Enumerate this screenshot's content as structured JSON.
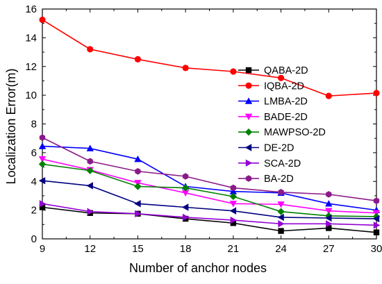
{
  "chart_data": {
    "type": "line",
    "title": "",
    "xlabel": "Number of anchor nodes",
    "ylabel": "Localization Error(m)",
    "x": [
      9,
      12,
      15,
      18,
      21,
      24,
      27,
      30
    ],
    "xlim": [
      9,
      30
    ],
    "ylim": [
      0,
      16
    ],
    "xticks": [
      "9",
      "12",
      "15",
      "18",
      "21",
      "24",
      "27",
      "30"
    ],
    "yticks": [
      "0",
      "2",
      "4",
      "6",
      "8",
      "10",
      "12",
      "14",
      "16"
    ],
    "grid": false,
    "legend_position": "upper-right",
    "series": [
      {
        "name": "QABA-2D",
        "color": "#000000",
        "marker": "square",
        "values": [
          2.2,
          1.8,
          1.75,
          1.4,
          1.1,
          0.55,
          0.75,
          0.45
        ]
      },
      {
        "name": "IQBA-2D",
        "color": "#ff0000",
        "marker": "circle",
        "values": [
          15.25,
          13.2,
          12.5,
          11.9,
          11.65,
          11.2,
          9.95,
          10.15
        ]
      },
      {
        "name": "LMBA-2D",
        "color": "#0000ff",
        "marker": "triangle-up",
        "values": [
          6.45,
          6.3,
          5.55,
          3.65,
          3.3,
          3.2,
          2.45,
          2.0
        ]
      },
      {
        "name": "BADE-2D",
        "color": "#ff00ff",
        "marker": "triangle-down",
        "values": [
          5.55,
          4.8,
          3.9,
          3.2,
          2.45,
          2.4,
          1.95,
          1.8
        ]
      },
      {
        "name": "MAWPSO-2D",
        "color": "#008000",
        "marker": "diamond",
        "values": [
          5.2,
          4.75,
          3.65,
          3.55,
          2.95,
          1.9,
          1.6,
          1.55
        ]
      },
      {
        "name": "DE-2D",
        "color": "#000080",
        "marker": "triangle-left",
        "values": [
          4.05,
          3.7,
          2.45,
          2.2,
          1.95,
          1.5,
          1.45,
          1.4
        ]
      },
      {
        "name": "SCA-2D",
        "color": "#9400d3",
        "marker": "triangle-right",
        "values": [
          2.45,
          1.9,
          1.75,
          1.5,
          1.3,
          1.05,
          1.05,
          0.95
        ]
      },
      {
        "name": "BA-2D",
        "color": "#8b1a89",
        "marker": "hexagon",
        "values": [
          7.05,
          5.4,
          4.7,
          4.35,
          3.55,
          3.25,
          3.1,
          2.65
        ]
      }
    ]
  }
}
